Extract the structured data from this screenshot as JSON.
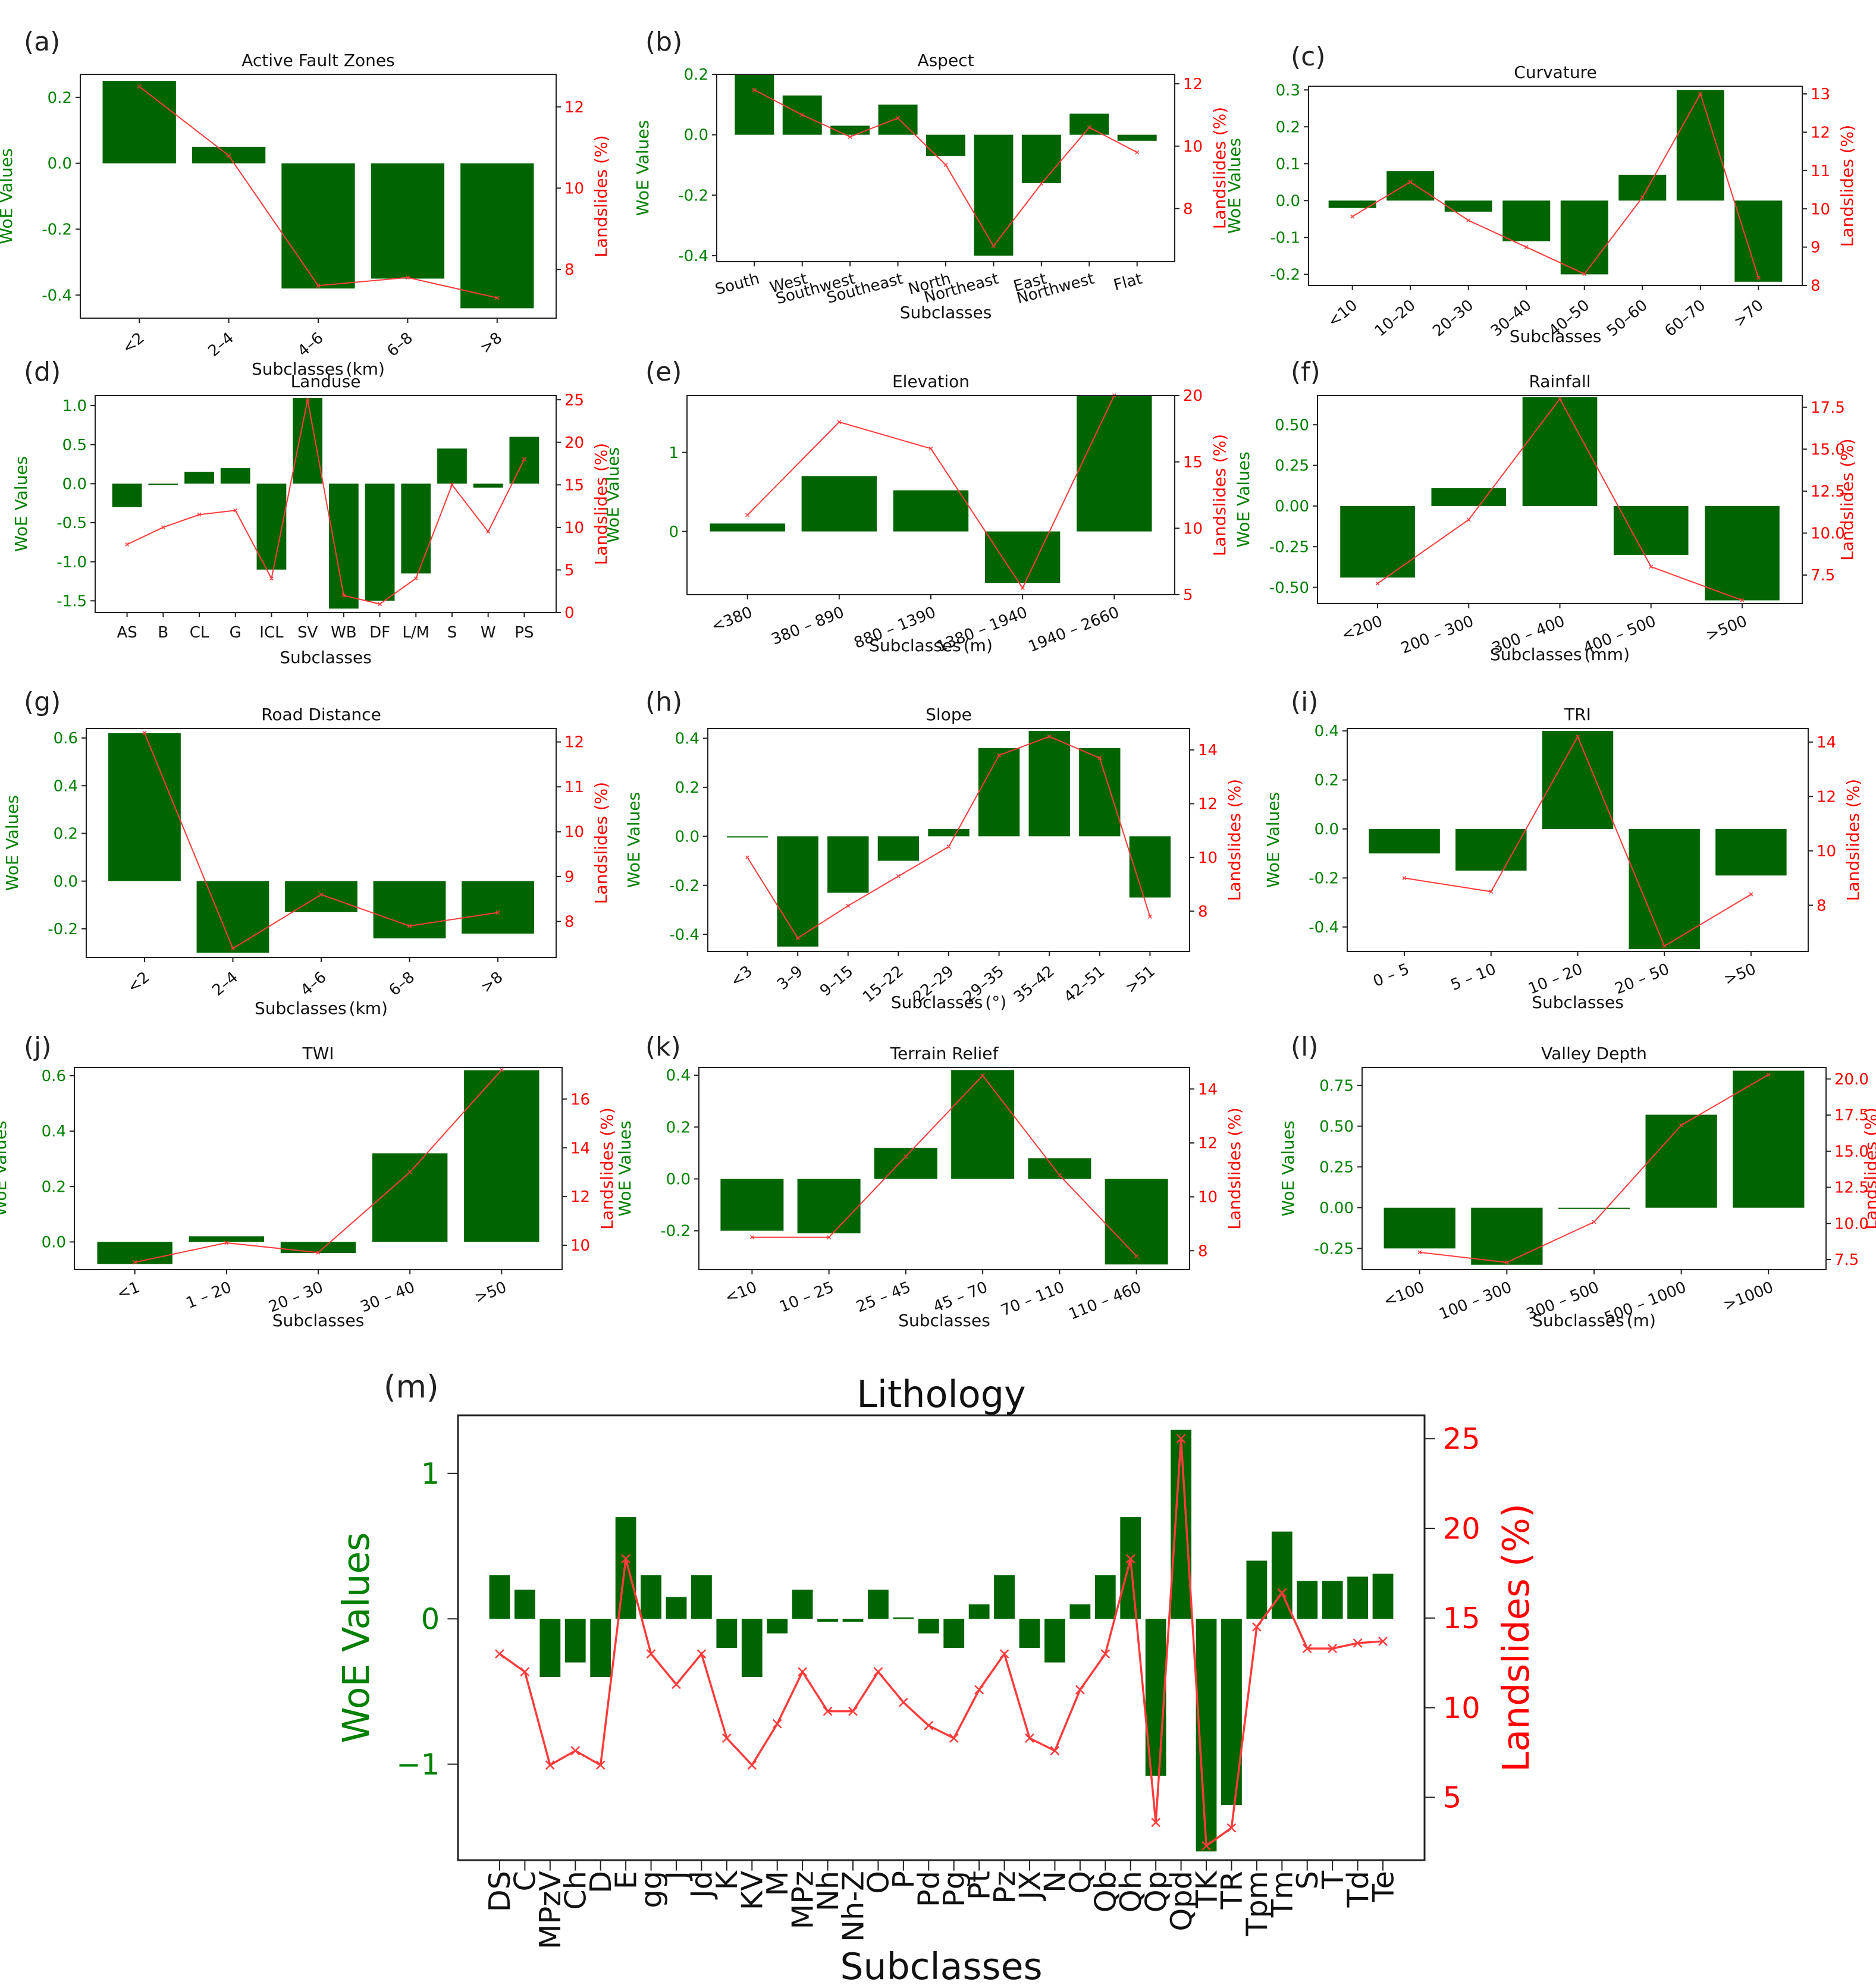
{
  "colors": {
    "bar": "#006400",
    "line": "#ff3b3b",
    "left_axis": "#008000",
    "right_axis": "#ff0000",
    "frame": "#222222"
  },
  "chart_data": [
    {
      "label": "(a)",
      "type": "bar+line",
      "title": "Active Fault Zones",
      "xlabel": "Subclasses",
      "xlabel_unit": "(km)",
      "ylabel": "WoE Values",
      "y2label": "Landslides (%)",
      "categories": [
        "<2",
        "2–4",
        "4–6",
        "6–8",
        ">8"
      ],
      "woe": [
        0.25,
        0.05,
        -0.38,
        -0.35,
        -0.44
      ],
      "landslides": [
        12.5,
        10.8,
        7.6,
        7.8,
        7.3
      ],
      "ylim": [
        -0.47,
        0.27
      ],
      "y2lim": [
        6.8,
        12.8
      ],
      "yticks": [
        -0.4,
        -0.2,
        0.0,
        0.2
      ],
      "y2ticks": [
        8,
        10,
        12
      ],
      "ytick_labels": [
        "-0.4",
        "-0.2",
        "0.0",
        "0.2"
      ],
      "y2tick_labels": [
        "8",
        "10",
        "12"
      ],
      "rot": 40
    },
    {
      "label": "(b)",
      "type": "bar+line",
      "title": "Aspect",
      "xlabel": "Subclasses",
      "xlabel_unit": "",
      "ylabel": "WoE Values",
      "y2label": "Landslides (%)",
      "categories": [
        "South",
        "West",
        "Southwest",
        "Southeast",
        "North",
        "Northeast",
        "East",
        "Northwest",
        "Flat"
      ],
      "woe": [
        0.2,
        0.13,
        0.03,
        0.1,
        -0.07,
        -0.4,
        -0.16,
        0.07,
        -0.02
      ],
      "landslides": [
        11.8,
        11.0,
        10.3,
        10.9,
        9.4,
        6.8,
        8.8,
        10.6,
        9.8
      ],
      "ylim": [
        -0.42,
        0.2
      ],
      "y2lim": [
        6.3,
        12.3
      ],
      "yticks": [
        -0.4,
        -0.2,
        0.0,
        0.2
      ],
      "y2ticks": [
        8,
        10,
        12
      ],
      "ytick_labels": [
        "-0.4",
        "-0.2",
        "0.0",
        "0.2"
      ],
      "y2tick_labels": [
        "8",
        "10",
        "12"
      ],
      "rot": 15
    },
    {
      "label": "(c)",
      "type": "bar+line",
      "title": "Curvature",
      "xlabel": "Subclasses",
      "xlabel_unit": "",
      "ylabel": "WoE Values",
      "y2label": "Landslides (%)",
      "categories": [
        "<10",
        "10–20",
        "20–30",
        "30–40",
        "40–50",
        "50–60",
        "60–70",
        ">70"
      ],
      "woe": [
        -0.02,
        0.08,
        -0.03,
        -0.11,
        -0.2,
        0.07,
        0.3,
        -0.22
      ],
      "landslides": [
        9.8,
        10.7,
        9.7,
        9.0,
        8.3,
        10.3,
        13.0,
        8.2
      ],
      "ylim": [
        -0.23,
        0.31
      ],
      "y2lim": [
        8.0,
        13.2
      ],
      "yticks": [
        -0.2,
        -0.1,
        0.0,
        0.1,
        0.2,
        0.3
      ],
      "y2ticks": [
        8,
        9,
        10,
        11,
        12,
        13
      ],
      "ytick_labels": [
        "-0.2",
        "-0.1",
        "0.0",
        "0.1",
        "0.2",
        "0.3"
      ],
      "y2tick_labels": [
        "8",
        "9",
        "10",
        "11",
        "12",
        "13"
      ],
      "rot": 40
    },
    {
      "label": "(d)",
      "type": "bar+line",
      "title": "Landuse",
      "xlabel": "Subclasses",
      "xlabel_unit": "",
      "ylabel": "WoE Values",
      "y2label": "Landslides (%)",
      "categories": [
        "AS",
        "B",
        "CL",
        "G",
        "ICL",
        "SV",
        "WB",
        "DF",
        "L/M",
        "S",
        "W",
        "PS"
      ],
      "woe": [
        -0.3,
        -0.02,
        0.15,
        0.2,
        -1.1,
        1.1,
        -1.6,
        -1.5,
        -1.15,
        0.45,
        -0.05,
        0.6
      ],
      "landslides": [
        8.0,
        10.0,
        11.5,
        12.0,
        4.0,
        25.0,
        2.0,
        1.0,
        4.0,
        15.0,
        9.5,
        18.0
      ],
      "ylim": [
        -1.65,
        1.13
      ],
      "y2lim": [
        0.0,
        25.5
      ],
      "yticks": [
        -1.5,
        -1.0,
        -0.5,
        0.0,
        0.5,
        1.0
      ],
      "y2ticks": [
        0,
        5,
        10,
        15,
        20,
        25
      ],
      "ytick_labels": [
        "-1.5",
        "-1.0",
        "-0.5",
        "0.0",
        "0.5",
        "1.0"
      ],
      "y2tick_labels": [
        "0",
        "5",
        "10",
        "15",
        "20",
        "25"
      ],
      "rot": 0
    },
    {
      "label": "(e)",
      "type": "bar+line",
      "title": "Elevation",
      "xlabel": "Subclasses",
      "xlabel_unit": "(m)",
      "ylabel": "WoE Values",
      "y2label": "Landslides (%)",
      "categories": [
        "<380",
        "380 – 890",
        "880 – 1390",
        "1380 – 1940",
        "1940 – 2660"
      ],
      "woe": [
        0.1,
        0.7,
        0.52,
        -0.65,
        1.72
      ],
      "landslides": [
        11.0,
        18.0,
        16.0,
        5.5,
        20.0
      ],
      "ylim": [
        -0.8,
        1.72
      ],
      "y2lim": [
        5.0,
        20.0
      ],
      "yticks": [
        0,
        1
      ],
      "y2ticks": [
        5,
        10,
        15,
        20
      ],
      "ytick_labels": [
        "0",
        "1"
      ],
      "y2tick_labels": [
        "5",
        "10",
        "15",
        "20"
      ],
      "rot": 22
    },
    {
      "label": "(f)",
      "type": "bar+line",
      "title": "Rainfall",
      "xlabel": "Subclasses",
      "xlabel_unit": "(mm)",
      "ylabel": "WoE Values",
      "y2label": "Landslides (%)",
      "categories": [
        "<200",
        "200 – 300",
        "300 – 400",
        "400 – 500",
        ">500"
      ],
      "woe": [
        -0.44,
        0.11,
        0.67,
        -0.3,
        -0.58
      ],
      "landslides": [
        7.0,
        10.8,
        18.0,
        8.0,
        6.0
      ],
      "ylim": [
        -0.6,
        0.68
      ],
      "y2lim": [
        5.8,
        18.2
      ],
      "yticks": [
        -0.5,
        -0.25,
        0.0,
        0.25,
        0.5
      ],
      "y2ticks": [
        7.5,
        10,
        12.5,
        15,
        17.5
      ],
      "ytick_labels": [
        "-0.50",
        "-0.25",
        "0.00",
        "0.25",
        "0.50"
      ],
      "y2tick_labels": [
        "7.5",
        "10.0",
        "12.5",
        "15.0",
        "17.5"
      ],
      "rot": 22
    },
    {
      "label": "(g)",
      "type": "bar+line",
      "title": "Road Distance",
      "xlabel": "Subclasses",
      "xlabel_unit": "(km)",
      "ylabel": "WoE Values",
      "y2label": "Landslides (%)",
      "categories": [
        "<2",
        "2–4",
        "4–6",
        "6–8",
        ">8"
      ],
      "woe": [
        0.62,
        -0.3,
        -0.13,
        -0.24,
        -0.22
      ],
      "landslides": [
        12.2,
        7.4,
        8.6,
        7.9,
        8.2
      ],
      "ylim": [
        -0.32,
        0.64
      ],
      "y2lim": [
        7.2,
        12.3
      ],
      "yticks": [
        -0.2,
        0.0,
        0.2,
        0.4,
        0.6
      ],
      "y2ticks": [
        8,
        9,
        10,
        11,
        12
      ],
      "ytick_labels": [
        "-0.2",
        "0.0",
        "0.2",
        "0.4",
        "0.6"
      ],
      "y2tick_labels": [
        "8",
        "9",
        "10",
        "11",
        "12"
      ],
      "rot": 40
    },
    {
      "label": "(h)",
      "type": "bar+line",
      "title": "Slope",
      "xlabel": "Subclasses",
      "xlabel_unit": "(°)",
      "ylabel": "WoE Values",
      "y2label": "Landslides (%)",
      "categories": [
        "<3",
        "3–9",
        "9–15",
        "15–22",
        "22–29",
        "29–35",
        "35–42",
        "42–51",
        ">51"
      ],
      "woe": [
        0.0,
        -0.45,
        -0.23,
        -0.1,
        0.03,
        0.36,
        0.43,
        0.36,
        -0.25
      ],
      "landslides": [
        10.0,
        7.0,
        8.2,
        9.3,
        10.4,
        13.8,
        14.5,
        13.7,
        7.8
      ],
      "ylim": [
        -0.47,
        0.44
      ],
      "y2lim": [
        6.5,
        14.8
      ],
      "yticks": [
        -0.4,
        -0.2,
        0.0,
        0.2,
        0.4
      ],
      "y2ticks": [
        8,
        10,
        12,
        14
      ],
      "ytick_labels": [
        "-0.4",
        "-0.2",
        "0.0",
        "0.2",
        "0.4"
      ],
      "y2tick_labels": [
        "8",
        "10",
        "12",
        "14"
      ],
      "rot": 40
    },
    {
      "label": "(i)",
      "type": "bar+line",
      "title": "TRI",
      "xlabel": "Subclasses",
      "xlabel_unit": "",
      "ylabel": "WoE Values",
      "y2label": "Landslides (%)",
      "categories": [
        "0 – 5",
        "5 – 10",
        "10 – 20",
        "20 – 50",
        ">50"
      ],
      "woe": [
        -0.1,
        -0.17,
        0.4,
        -0.49,
        -0.19
      ],
      "landslides": [
        9.0,
        8.5,
        14.2,
        6.5,
        8.4
      ],
      "ylim": [
        -0.5,
        0.41
      ],
      "y2lim": [
        6.3,
        14.5
      ],
      "yticks": [
        -0.4,
        -0.2,
        0.0,
        0.2,
        0.4
      ],
      "y2ticks": [
        8,
        10,
        12,
        14
      ],
      "ytick_labels": [
        "-0.4",
        "-0.2",
        "0.0",
        "0.2",
        "0.4"
      ],
      "y2tick_labels": [
        "8",
        "10",
        "12",
        "14"
      ],
      "rot": 22
    },
    {
      "label": "(j)",
      "type": "bar+line",
      "title": "TWI",
      "xlabel": "Subclasses",
      "xlabel_unit": "",
      "ylabel": "WoE Values",
      "y2label": "Landslides (%)",
      "categories": [
        "<1",
        "1 – 20",
        "20 – 30",
        "30 – 40",
        ">50"
      ],
      "woe": [
        -0.08,
        0.02,
        -0.04,
        0.32,
        0.62
      ],
      "landslides": [
        9.3,
        10.1,
        9.7,
        13.0,
        17.2
      ],
      "ylim": [
        -0.1,
        0.63
      ],
      "y2lim": [
        9.0,
        17.3
      ],
      "yticks": [
        0.0,
        0.2,
        0.4,
        0.6
      ],
      "y2ticks": [
        10,
        12,
        14,
        16
      ],
      "ytick_labels": [
        "0.0",
        "0.2",
        "0.4",
        "0.6"
      ],
      "y2tick_labels": [
        "10",
        "12",
        "14",
        "16"
      ],
      "rot": 22
    },
    {
      "label": "(k)",
      "type": "bar+line",
      "title": "Terrain Relief",
      "xlabel": "Subclasses",
      "xlabel_unit": "",
      "ylabel": "WoE Values",
      "y2label": "Landslides (%)",
      "categories": [
        "<10",
        "10 – 25",
        "25 – 45",
        "45 – 70",
        "70 – 110",
        "110 – 460"
      ],
      "woe": [
        -0.2,
        -0.21,
        0.12,
        0.42,
        0.08,
        -0.33
      ],
      "landslides": [
        8.5,
        8.5,
        11.5,
        14.5,
        10.8,
        7.8
      ],
      "ylim": [
        -0.35,
        0.43
      ],
      "y2lim": [
        7.3,
        14.8
      ],
      "yticks": [
        -0.2,
        0.0,
        0.2,
        0.4
      ],
      "y2ticks": [
        8,
        10,
        12,
        14
      ],
      "ytick_labels": [
        "-0.2",
        "0.0",
        "0.2",
        "0.4"
      ],
      "y2tick_labels": [
        "8",
        "10",
        "12",
        "14"
      ],
      "rot": 22
    },
    {
      "label": "(l)",
      "type": "bar+line",
      "title": "Valley Depth",
      "xlabel": "Subclasses",
      "xlabel_unit": "(m)",
      "ylabel": "WoE Values",
      "y2label": "Landslides (%)",
      "categories": [
        "<100",
        "100 – 300",
        "300 – 500",
        "500 – 1000",
        ">1000"
      ],
      "woe": [
        -0.25,
        -0.35,
        0.0,
        0.57,
        0.84
      ],
      "landslides": [
        8.0,
        7.3,
        10.1,
        16.8,
        20.3
      ],
      "ylim": [
        -0.38,
        0.86
      ],
      "y2lim": [
        6.8,
        20.8
      ],
      "yticks": [
        -0.25,
        0.0,
        0.25,
        0.5,
        0.75
      ],
      "y2ticks": [
        7.5,
        10,
        12.5,
        15,
        17.5,
        20
      ],
      "ytick_labels": [
        "-0.25",
        "0.00",
        "0.25",
        "0.50",
        "0.75"
      ],
      "y2tick_labels": [
        "7.5",
        "10.0",
        "12.5",
        "15.0",
        "17.5",
        "20.0"
      ],
      "rot": 22
    },
    {
      "label": "(m)",
      "type": "bar+line",
      "title": "Lithology",
      "xlabel": "Subclasses",
      "xlabel_unit": "",
      "ylabel": "WoE Values",
      "y2label": "Landslides (%)",
      "categories": [
        "DS",
        "C",
        "MPzV",
        "Ch",
        "D",
        "E",
        "gg",
        "J",
        "Jd",
        "K",
        "KV",
        "M",
        "MPz",
        "Nh",
        "Nh-Z",
        "O",
        "P",
        "Pd",
        "Pg",
        "Pt",
        "Pz",
        "JX",
        "N",
        "Q",
        "Qb",
        "Qh",
        "Qp",
        "Qpd",
        "TK",
        "TR",
        "Tpm",
        "Tm",
        "S",
        "T",
        "Td",
        "Te"
      ],
      "woe": [
        0.3,
        0.2,
        -0.4,
        -0.3,
        -0.4,
        0.7,
        0.3,
        0.15,
        0.3,
        -0.2,
        -0.4,
        -0.1,
        0.2,
        -0.02,
        -0.02,
        0.2,
        0.01,
        -0.1,
        -0.2,
        0.1,
        0.3,
        -0.2,
        -0.3,
        0.1,
        0.3,
        0.7,
        -1.08,
        1.3,
        -1.6,
        -1.28,
        0.4,
        0.6,
        0.26,
        0.26,
        0.29,
        0.31
      ],
      "landslides": [
        13.0,
        12.0,
        6.8,
        7.6,
        6.8,
        18.3,
        13.0,
        11.3,
        13.0,
        8.3,
        6.8,
        9.1,
        12.0,
        9.8,
        9.8,
        12.0,
        10.3,
        9.0,
        8.3,
        11.0,
        13.0,
        8.3,
        7.6,
        11.0,
        13.0,
        18.3,
        3.6,
        25.0,
        2.3,
        3.3,
        14.5,
        16.4,
        13.3,
        13.3,
        13.6,
        13.7
      ],
      "ylim": [
        -1.66,
        1.4
      ],
      "y2lim": [
        1.5,
        26.3
      ],
      "yticks": [
        -1,
        0,
        1
      ],
      "y2ticks": [
        5,
        10,
        15,
        20,
        25
      ],
      "ytick_labels": [
        "−1",
        "0",
        "1"
      ],
      "y2tick_labels": [
        "5",
        "10",
        "15",
        "20",
        "25"
      ],
      "rot": 90
    }
  ]
}
